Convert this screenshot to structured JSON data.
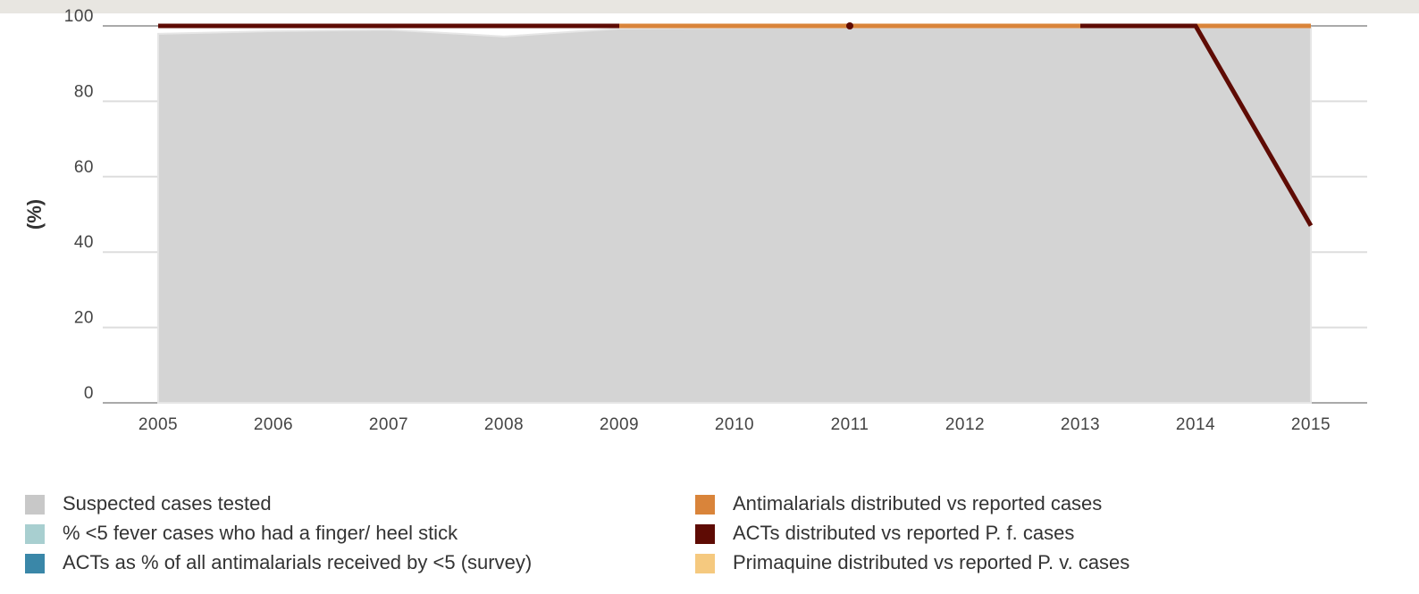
{
  "chart_data": {
    "type": "line",
    "y_label": "(%)",
    "categories": [
      "2005",
      "2006",
      "2007",
      "2008",
      "2009",
      "2010",
      "2011",
      "2012",
      "2013",
      "2014",
      "2015"
    ],
    "ylim": [
      0,
      100
    ],
    "yticks": [
      0,
      20,
      40,
      60,
      80,
      100
    ],
    "grid": true,
    "series": [
      {
        "name": "Suspected cases tested",
        "type": "area",
        "color": "#d4d4d4",
        "legend_color": "#c8c8c8",
        "values": [
          97.9,
          98.6,
          99,
          97.2,
          99.3,
          99.5,
          99.6,
          99.6,
          99.6,
          99.6,
          99.6
        ]
      },
      {
        "name": "% <5 fever cases who had a finger/ heel stick",
        "color": "#a8cfd0",
        "values": [
          null,
          null,
          null,
          null,
          null,
          null,
          null,
          null,
          null,
          null,
          null
        ]
      },
      {
        "name": "ACTs as % of all antimalarials received by <5 (survey)",
        "color": "#3a87a8",
        "values": [
          null,
          null,
          null,
          null,
          null,
          null,
          null,
          null,
          null,
          null,
          null
        ]
      },
      {
        "name": "Antimalarials distributed vs reported cases",
        "color": "#d9843a",
        "values": [
          null,
          null,
          null,
          null,
          100,
          100,
          100,
          100,
          100,
          100,
          100
        ]
      },
      {
        "name": "ACTs distributed vs reported P. f. cases",
        "color": "#5e0b04",
        "values": [
          100,
          100,
          100,
          100,
          100,
          null,
          100,
          null,
          100,
          100,
          47
        ]
      },
      {
        "name": "Primaquine distributed vs reported P. v. cases",
        "color": "#f5c97f",
        "values": [
          null,
          null,
          null,
          null,
          null,
          null,
          null,
          null,
          null,
          null,
          null
        ]
      }
    ]
  }
}
